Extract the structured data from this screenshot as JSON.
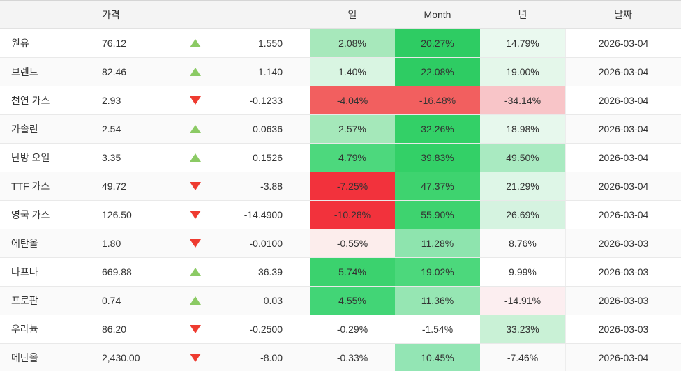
{
  "header": {
    "name": "",
    "price": "가격",
    "day": "일",
    "month": "Month",
    "year": "년",
    "date": "날짜"
  },
  "colors": {
    "up_arrow": "#8bca64",
    "down_arrow": "#ee3b30",
    "header_bg": "#f4f4f4",
    "row_stripe": "#fafafa",
    "text": "#333333"
  },
  "rows": [
    {
      "name": "원유",
      "price": "76.12",
      "direction": "up",
      "change": "1.550",
      "day": "2.08%",
      "month": "20.27%",
      "year": "14.79%",
      "date": "2026-03-04",
      "day_bg": "#a7e8bb",
      "month_bg": "#2ecc63",
      "year_bg": "#eaf9ef"
    },
    {
      "name": "브렌트",
      "price": "82.46",
      "direction": "up",
      "change": "1.140",
      "day": "1.40%",
      "month": "22.08%",
      "year": "19.00%",
      "date": "2026-03-04",
      "day_bg": "#d9f5e2",
      "month_bg": "#2ecc63",
      "year_bg": "#e4f7ea"
    },
    {
      "name": "천연 가스",
      "price": "2.93",
      "direction": "down",
      "change": "-0.1233",
      "day": "-4.04%",
      "month": "-16.48%",
      "year": "-34.14%",
      "date": "2026-03-04",
      "day_bg": "#f25f5f",
      "month_bg": "#f25f5f",
      "year_bg": "#f8c5c8"
    },
    {
      "name": "가솔린",
      "price": "2.54",
      "direction": "up",
      "change": "0.0636",
      "day": "2.57%",
      "month": "32.26%",
      "year": "18.98%",
      "date": "2026-03-04",
      "day_bg": "#a5e8ba",
      "month_bg": "#33d067",
      "year_bg": "#e7f8ed"
    },
    {
      "name": "난방 오일",
      "price": "3.35",
      "direction": "up",
      "change": "0.1526",
      "day": "4.79%",
      "month": "39.83%",
      "year": "49.50%",
      "date": "2026-03-04",
      "day_bg": "#4dd87d",
      "month_bg": "#33d067",
      "year_bg": "#a9eac1"
    },
    {
      "name": "TTF 가스",
      "price": "49.72",
      "direction": "down",
      "change": "-3.88",
      "day": "-7.25%",
      "month": "47.37%",
      "year": "21.29%",
      "date": "2026-03-04",
      "day_bg": "#f2323c",
      "month_bg": "#3ed36f",
      "year_bg": "#def6e7"
    },
    {
      "name": "영국 가스",
      "price": "126.50",
      "direction": "down",
      "change": "-14.4900",
      "day": "-10.28%",
      "month": "55.90%",
      "year": "26.69%",
      "date": "2026-03-04",
      "day_bg": "#f2323c",
      "month_bg": "#3ed36f",
      "year_bg": "#d5f3e0"
    },
    {
      "name": "에탄올",
      "price": "1.80",
      "direction": "down",
      "change": "-0.0100",
      "day": "-0.55%",
      "month": "11.28%",
      "year": "8.76%",
      "date": "2026-03-03",
      "day_bg": "#fcedec",
      "month_bg": "#8ee4ae",
      "year_bg": ""
    },
    {
      "name": "나프타",
      "price": "669.88",
      "direction": "up",
      "change": "36.39",
      "day": "5.74%",
      "month": "19.02%",
      "year": "9.99%",
      "date": "2026-03-03",
      "day_bg": "#3bd26e",
      "month_bg": "#4cd87c",
      "year_bg": ""
    },
    {
      "name": "프로판",
      "price": "0.74",
      "direction": "up",
      "change": "0.03",
      "day": "4.55%",
      "month": "11.36%",
      "year": "-14.91%",
      "date": "2026-03-03",
      "day_bg": "#42d576",
      "month_bg": "#96e6b3",
      "year_bg": "#fceef0"
    },
    {
      "name": "우라늄",
      "price": "86.20",
      "direction": "down",
      "change": "-0.2500",
      "day": "-0.29%",
      "month": "-1.54%",
      "year": "33.23%",
      "date": "2026-03-03",
      "day_bg": "",
      "month_bg": "",
      "year_bg": "#c9f1d6"
    },
    {
      "name": "메탄올",
      "price": "2,430.00",
      "direction": "down",
      "change": "-8.00",
      "day": "-0.33%",
      "month": "10.45%",
      "year": "-7.46%",
      "date": "2026-03-04",
      "day_bg": "",
      "month_bg": "#93e5b4",
      "year_bg": ""
    }
  ]
}
